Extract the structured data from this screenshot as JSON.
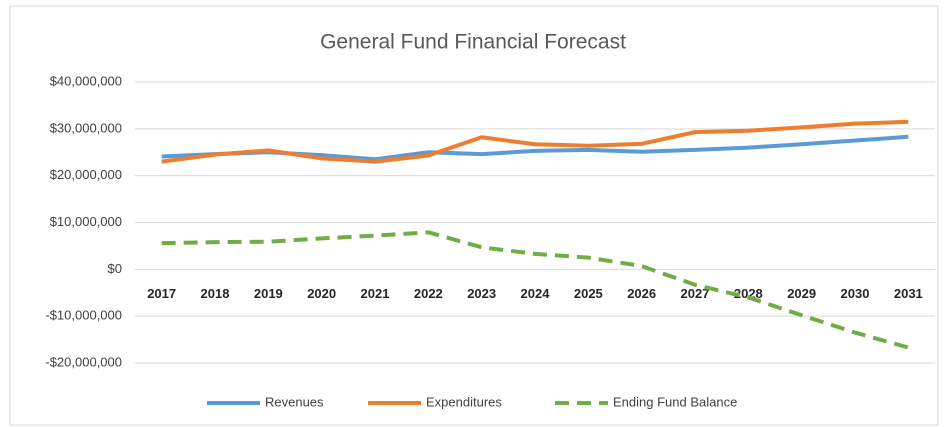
{
  "chart_data": {
    "type": "line",
    "title": "General Fund Financial Forecast",
    "categories": [
      "2017",
      "2018",
      "2019",
      "2020",
      "2021",
      "2022",
      "2023",
      "2024",
      "2025",
      "2026",
      "2027",
      "2028",
      "2029",
      "2030",
      "2031"
    ],
    "series": [
      {
        "name": "Revenues",
        "color": "#5b9bd5",
        "style": "solid",
        "values": [
          24100000,
          24600000,
          25000000,
          24400000,
          23500000,
          25000000,
          24600000,
          25300000,
          25500000,
          25100000,
          25500000,
          26000000,
          26700000,
          27500000,
          28300000
        ]
      },
      {
        "name": "Expenditures",
        "color": "#ed7d31",
        "style": "solid",
        "values": [
          23000000,
          24500000,
          25400000,
          23700000,
          23000000,
          24300000,
          28200000,
          26700000,
          26400000,
          26800000,
          29300000,
          29600000,
          30300000,
          31100000,
          31500000
        ]
      },
      {
        "name": "Ending Fund Balance",
        "color": "#70ad47",
        "style": "dashed",
        "values": [
          5600000,
          5800000,
          5900000,
          6600000,
          7200000,
          7900000,
          4700000,
          3300000,
          2500000,
          700000,
          -3300000,
          -6000000,
          -9800000,
          -13500000,
          -16700000
        ]
      }
    ],
    "ylim": [
      -20000000,
      40000000
    ],
    "yticks": [
      {
        "value": -20000000,
        "label": "-$20,000,000"
      },
      {
        "value": -10000000,
        "label": "-$10,000,000"
      },
      {
        "value": 0,
        "label": "$0"
      },
      {
        "value": 10000000,
        "label": "$10,000,000"
      },
      {
        "value": 20000000,
        "label": "$20,000,000"
      },
      {
        "value": 30000000,
        "label": "$30,000,000"
      },
      {
        "value": 40000000,
        "label": "$40,000,000"
      }
    ],
    "grid": true,
    "legend": "bottom"
  }
}
